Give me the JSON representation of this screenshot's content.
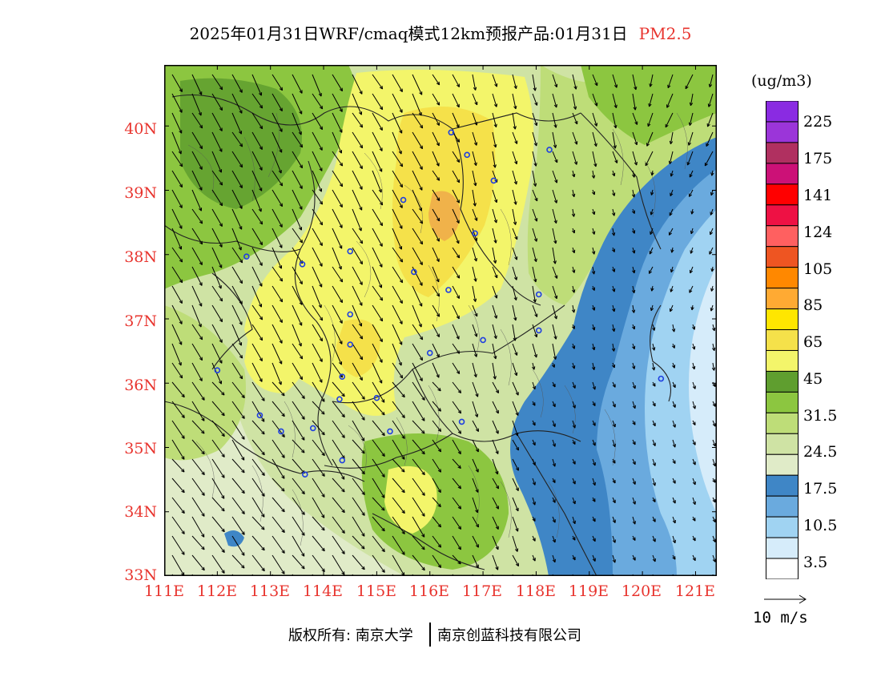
{
  "title": {
    "main": "2025年01月31日WRF/cmaq模式12km预报产品:01月31日",
    "species": "PM2.5"
  },
  "map": {
    "lat_labels": [
      "40N",
      "39N",
      "38N",
      "37N",
      "36N",
      "35N",
      "34N",
      "33N"
    ],
    "lon_labels": [
      "111E",
      "112E",
      "113E",
      "114E",
      "115E",
      "116E",
      "117E",
      "118E",
      "119E",
      "120E",
      "121E"
    ],
    "lat_range": [
      33,
      40.95
    ],
    "lon_range": [
      111,
      121.4
    ],
    "wind_reference_label": "10 m/s",
    "station_marker": "o",
    "stations": [
      [
        116.4,
        39.9
      ],
      [
        116.7,
        39.55
      ],
      [
        117.2,
        39.15
      ],
      [
        115.5,
        38.85
      ],
      [
        116.85,
        38.33
      ],
      [
        114.5,
        38.05
      ],
      [
        113.6,
        37.85
      ],
      [
        112.55,
        37.97
      ],
      [
        115.7,
        37.73
      ],
      [
        116.35,
        37.45
      ],
      [
        118.05,
        37.38
      ],
      [
        114.5,
        37.07
      ],
      [
        114.5,
        36.6
      ],
      [
        112.0,
        36.2
      ],
      [
        114.35,
        36.1
      ],
      [
        116.0,
        36.47
      ],
      [
        117.0,
        36.67
      ],
      [
        118.05,
        36.82
      ],
      [
        114.3,
        35.75
      ],
      [
        115.0,
        35.77
      ],
      [
        112.8,
        35.5
      ],
      [
        113.2,
        35.25
      ],
      [
        113.8,
        35.3
      ],
      [
        115.25,
        35.25
      ],
      [
        116.6,
        35.4
      ],
      [
        114.35,
        34.8
      ],
      [
        113.65,
        34.58
      ],
      [
        118.25,
        39.63
      ],
      [
        120.35,
        36.07
      ]
    ]
  },
  "legend": {
    "unit": "(ug/m3)",
    "labels": [
      "225",
      "175",
      "141",
      "124",
      "105",
      "85",
      "65",
      "45",
      "31.5",
      "24.5",
      "17.5",
      "10.5",
      "3.5"
    ],
    "colors_top_to_bottom": [
      "#8a2be2",
      "#9b35d9",
      "#b03060",
      "#cc1177",
      "#ff0000",
      "#ee1144",
      "#ff6060",
      "#ee5522",
      "#ff8800",
      "#ffaa33",
      "#ffe600",
      "#f5e14a",
      "#f3f56a",
      "#5f9e2f",
      "#8cc640",
      "#bedd78",
      "#cfe3a4",
      "#e0ebc8",
      "#3f86c6",
      "#6aaade",
      "#a0d3f2",
      "#d6ecfa",
      "#ffffff"
    ]
  },
  "credits": {
    "left": "版权所有: 南京大学",
    "right": "南京创蓝科技有限公司"
  }
}
